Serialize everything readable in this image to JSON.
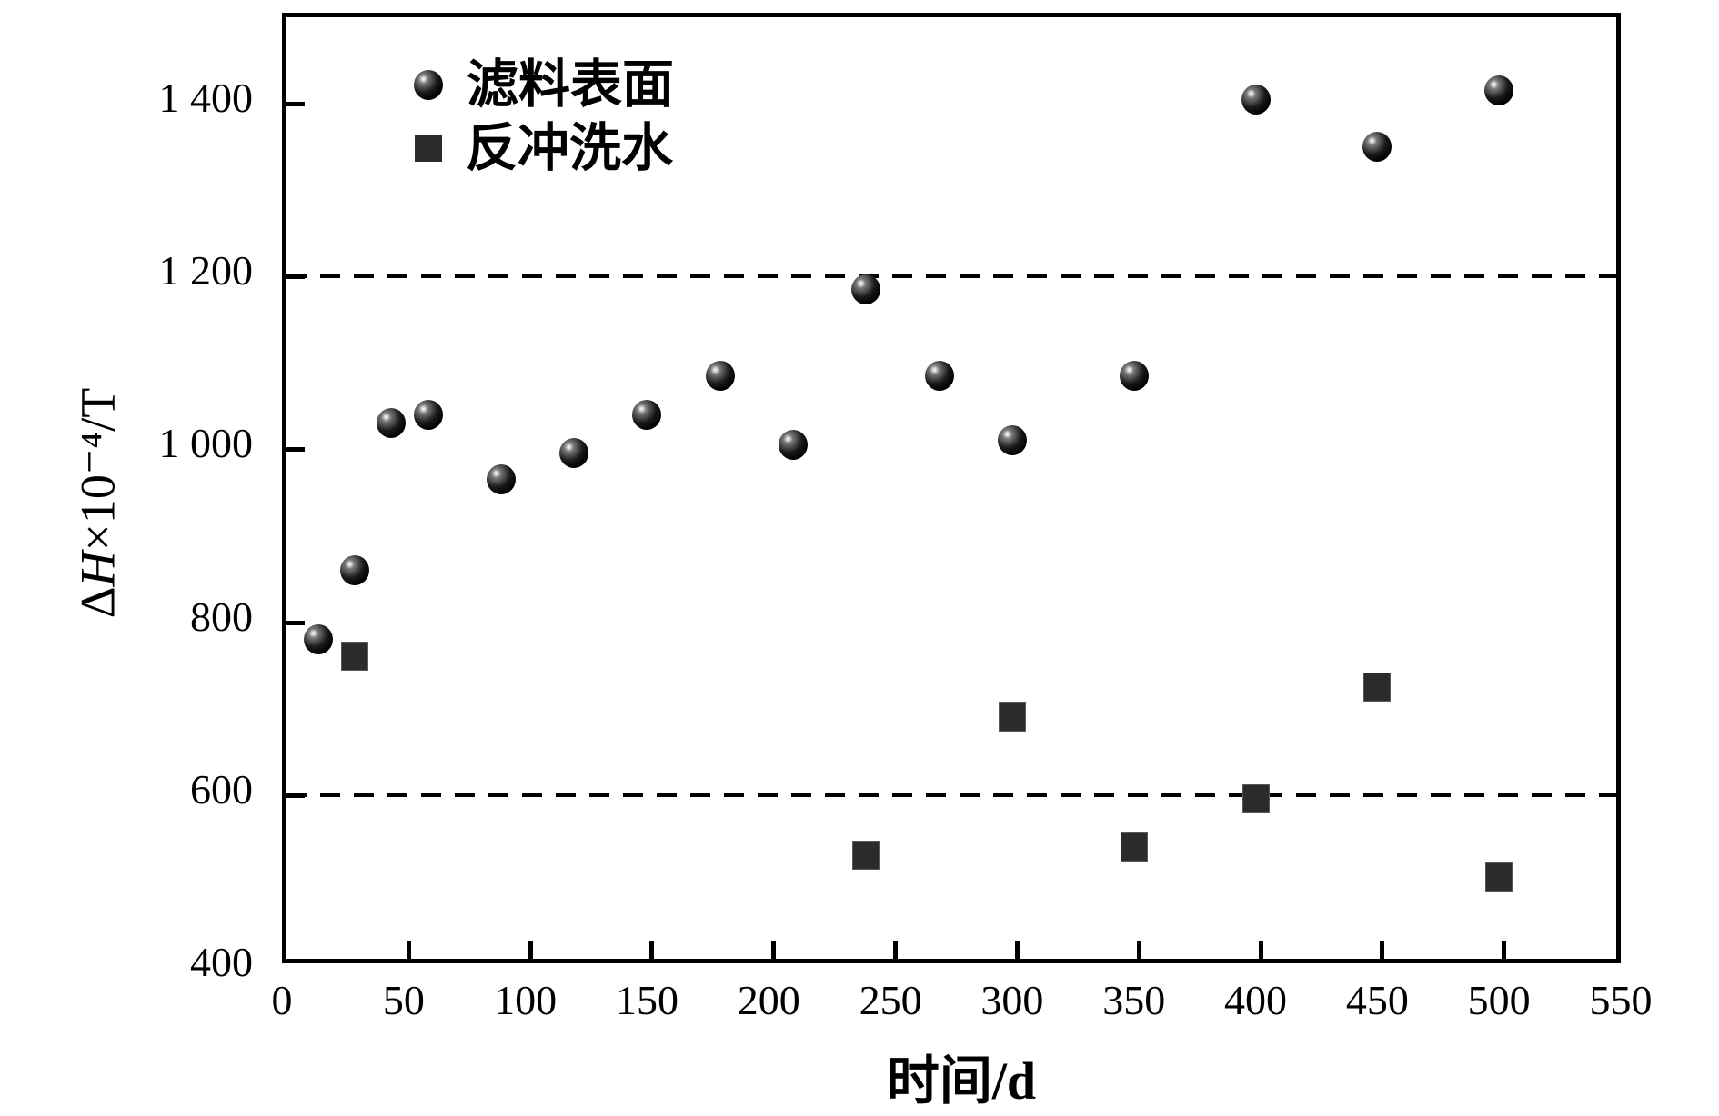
{
  "figure": {
    "xlabel": "时间/d",
    "ylabel": {
      "prefix": "Δ",
      "italic": "H",
      "suffix": "×10⁻⁴/T"
    }
  },
  "chart_data": {
    "type": "scatter",
    "title": "",
    "xlabel": "时间/d",
    "ylabel": "ΔH×10⁻⁴/T",
    "xlim": [
      0,
      550
    ],
    "ylim": [
      400,
      1500
    ],
    "grid": false,
    "legend_position": "top-left-inside",
    "x_ticks": {
      "values": [
        0,
        50,
        100,
        150,
        200,
        250,
        300,
        350,
        400,
        450,
        500,
        550
      ],
      "labels": [
        "0",
        "50",
        "100",
        "150",
        "200",
        "250",
        "300",
        "350",
        "400",
        "450",
        "500",
        "550"
      ]
    },
    "y_ticks": {
      "values": [
        400,
        600,
        800,
        1000,
        1200,
        1400
      ],
      "labels": [
        "400",
        "600",
        "800",
        "1 000",
        "1 200",
        "1 400"
      ]
    },
    "reference_lines": [
      {
        "y": 1200,
        "style": "dashed",
        "color": "#000000"
      },
      {
        "y": 600,
        "style": "dashed",
        "color": "#000000"
      }
    ],
    "series": [
      {
        "name": "滤料表面",
        "marker": "sphere",
        "color": "#000000",
        "points": [
          [
            15,
            775
          ],
          [
            30,
            855
          ],
          [
            45,
            1025
          ],
          [
            60,
            1035
          ],
          [
            90,
            960
          ],
          [
            120,
            990
          ],
          [
            150,
            1035
          ],
          [
            180,
            1080
          ],
          [
            210,
            1000
          ],
          [
            240,
            1180
          ],
          [
            270,
            1080
          ],
          [
            300,
            1005
          ],
          [
            350,
            1080
          ],
          [
            400,
            1400
          ],
          [
            450,
            1345
          ],
          [
            500,
            1410
          ]
        ]
      },
      {
        "name": "反冲洗水",
        "marker": "square",
        "color": "#2b2b2b",
        "points": [
          [
            30,
            755
          ],
          [
            240,
            525
          ],
          [
            300,
            685
          ],
          [
            350,
            535
          ],
          [
            400,
            590
          ],
          [
            450,
            720
          ],
          [
            500,
            500
          ]
        ]
      }
    ]
  }
}
